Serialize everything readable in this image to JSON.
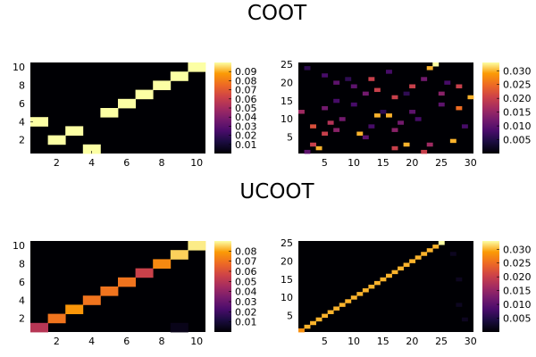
{
  "chart_data": [
    {
      "type": "heatmap",
      "group_title": "COOT",
      "panel": "top-left",
      "xlim": [
        0.5,
        10.5
      ],
      "ylim": [
        0.5,
        10.5
      ],
      "xticks": [
        2,
        4,
        6,
        8,
        10
      ],
      "yticks": [
        2,
        4,
        6,
        8,
        10
      ],
      "colorbar": {
        "min": 0,
        "max": 0.1,
        "ticks": [
          0.01,
          0.02,
          0.03,
          0.04,
          0.05,
          0.06,
          0.07,
          0.08,
          0.09
        ],
        "labels": [
          "0.01",
          "0.02",
          "0.03",
          "0.04",
          "0.05",
          "0.06",
          "0.07",
          "0.08",
          "0.09"
        ]
      },
      "cells": [
        [
          1,
          4,
          0.1
        ],
        [
          2,
          2,
          0.1
        ],
        [
          3,
          3,
          0.1
        ],
        [
          4,
          1,
          0.1
        ],
        [
          5,
          5,
          0.1
        ],
        [
          6,
          6,
          0.1
        ],
        [
          7,
          7,
          0.1
        ],
        [
          8,
          8,
          0.1
        ],
        [
          9,
          9,
          0.1
        ],
        [
          10,
          10,
          0.1
        ]
      ]
    },
    {
      "type": "heatmap",
      "group_title": "",
      "panel": "top-right",
      "xlim": [
        0.5,
        30.5
      ],
      "ylim": [
        0.5,
        25.5
      ],
      "xticks": [
        5,
        10,
        15,
        20,
        25,
        30
      ],
      "yticks": [
        5,
        10,
        15,
        20,
        25
      ],
      "colorbar": {
        "min": 0,
        "max": 0.033,
        "ticks": [
          0.005,
          0.01,
          0.015,
          0.02,
          0.025,
          0.03
        ],
        "labels": [
          "0.005",
          "0.010",
          "0.015",
          "0.020",
          "0.025",
          "0.030"
        ]
      },
      "cells": [
        [
          1,
          12,
          0.016
        ],
        [
          2,
          24,
          0.006
        ],
        [
          2,
          1,
          0.01
        ],
        [
          3,
          8,
          0.022
        ],
        [
          3,
          3,
          0.02
        ],
        [
          4,
          2,
          0.03
        ],
        [
          5,
          6,
          0.02
        ],
        [
          5,
          13,
          0.012
        ],
        [
          5,
          22,
          0.008
        ],
        [
          6,
          9,
          0.018
        ],
        [
          7,
          20,
          0.01
        ],
        [
          7,
          15,
          0.008
        ],
        [
          7,
          7,
          0.014
        ],
        [
          8,
          10,
          0.012
        ],
        [
          9,
          21,
          0.006
        ],
        [
          10,
          19,
          0.01
        ],
        [
          10,
          14,
          0.008
        ],
        [
          11,
          6,
          0.03
        ],
        [
          12,
          17,
          0.012
        ],
        [
          12,
          5,
          0.01
        ],
        [
          13,
          21,
          0.02
        ],
        [
          13,
          8,
          0.008
        ],
        [
          14,
          11,
          0.03
        ],
        [
          14,
          18,
          0.02
        ],
        [
          15,
          12,
          0.006
        ],
        [
          16,
          23,
          0.008
        ],
        [
          16,
          11,
          0.03
        ],
        [
          17,
          16,
          0.02
        ],
        [
          17,
          7,
          0.014
        ],
        [
          17,
          2,
          0.02
        ],
        [
          18,
          9,
          0.012
        ],
        [
          19,
          3,
          0.03
        ],
        [
          19,
          17,
          0.006
        ],
        [
          20,
          19,
          0.02
        ],
        [
          20,
          12,
          0.01
        ],
        [
          21,
          10,
          0.008
        ],
        [
          22,
          21,
          0.012
        ],
        [
          22,
          1,
          0.02
        ],
        [
          23,
          3,
          0.016
        ],
        [
          23,
          24,
          0.03
        ],
        [
          24,
          25,
          0.033
        ],
        [
          25,
          17,
          0.014
        ],
        [
          25,
          14,
          0.01
        ],
        [
          26,
          20,
          0.008
        ],
        [
          27,
          4,
          0.03
        ],
        [
          28,
          13,
          0.025
        ],
        [
          28,
          19,
          0.02
        ],
        [
          29,
          8,
          0.008
        ],
        [
          30,
          16,
          0.03
        ]
      ]
    },
    {
      "type": "heatmap",
      "group_title": "UCOOT",
      "panel": "bottom-left",
      "xlim": [
        0.5,
        10.5
      ],
      "ylim": [
        0.5,
        10.5
      ],
      "xticks": [
        2,
        4,
        6,
        8,
        10
      ],
      "yticks": [
        2,
        4,
        6,
        8,
        10
      ],
      "colorbar": {
        "min": 0,
        "max": 0.09,
        "ticks": [
          0.01,
          0.02,
          0.03,
          0.04,
          0.05,
          0.06,
          0.07,
          0.08
        ],
        "labels": [
          "0.01",
          "0.02",
          "0.03",
          "0.04",
          "0.05",
          "0.06",
          "0.07",
          "0.08"
        ]
      },
      "cells": [
        [
          1,
          1,
          0.05
        ],
        [
          2,
          2,
          0.07
        ],
        [
          3,
          3,
          0.078
        ],
        [
          4,
          4,
          0.07
        ],
        [
          5,
          5,
          0.07
        ],
        [
          6,
          6,
          0.07
        ],
        [
          7,
          7,
          0.055
        ],
        [
          8,
          8,
          0.075
        ],
        [
          9,
          9,
          0.085
        ],
        [
          10,
          10,
          0.088
        ],
        [
          9,
          1,
          0.004
        ]
      ]
    },
    {
      "type": "heatmap",
      "group_title": "",
      "panel": "bottom-right",
      "xlim": [
        0.5,
        30.5
      ],
      "ylim": [
        0.5,
        25.5
      ],
      "xticks": [
        5,
        10,
        15,
        20,
        25,
        30
      ],
      "yticks": [
        5,
        10,
        15,
        20,
        25
      ],
      "colorbar": {
        "min": 0,
        "max": 0.033,
        "ticks": [
          0.005,
          0.01,
          0.015,
          0.02,
          0.025,
          0.03
        ],
        "labels": [
          "0.005",
          "0.010",
          "0.015",
          "0.020",
          "0.025",
          "0.030"
        ]
      },
      "cells": [
        [
          1,
          1,
          0.028
        ],
        [
          2,
          2,
          0.03
        ],
        [
          3,
          3,
          0.03
        ],
        [
          4,
          4,
          0.03
        ],
        [
          5,
          5,
          0.03
        ],
        [
          6,
          6,
          0.03
        ],
        [
          7,
          7,
          0.03
        ],
        [
          8,
          8,
          0.03
        ],
        [
          9,
          9,
          0.03
        ],
        [
          10,
          10,
          0.03
        ],
        [
          11,
          11,
          0.03
        ],
        [
          12,
          12,
          0.03
        ],
        [
          13,
          13,
          0.03
        ],
        [
          14,
          14,
          0.03
        ],
        [
          15,
          15,
          0.03
        ],
        [
          16,
          16,
          0.03
        ],
        [
          17,
          17,
          0.03
        ],
        [
          18,
          18,
          0.03
        ],
        [
          19,
          19,
          0.03
        ],
        [
          20,
          20,
          0.03
        ],
        [
          21,
          21,
          0.03
        ],
        [
          22,
          22,
          0.03
        ],
        [
          23,
          23,
          0.03
        ],
        [
          24,
          24,
          0.03
        ],
        [
          25,
          25,
          0.033
        ],
        [
          28,
          8,
          0.002
        ],
        [
          28,
          15,
          0.002
        ],
        [
          29,
          4,
          0.002
        ],
        [
          27,
          22,
          0.002
        ]
      ]
    }
  ]
}
